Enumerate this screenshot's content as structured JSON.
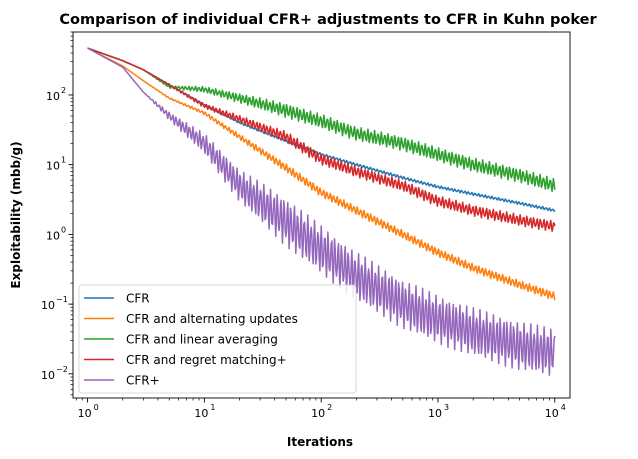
{
  "chart_data": {
    "type": "line",
    "title": "Comparison of individual CFR+ adjustments to CFR in Kuhn poker",
    "xlabel": "Iterations",
    "ylabel": "Exploitability (mbb/g)",
    "xscale": "log",
    "yscale": "log",
    "xlim": [
      0.75,
      13500
    ],
    "ylim": [
      0.0045,
      800
    ],
    "grid": false,
    "legend_position": "lower-left",
    "x_ticks": [
      {
        "base": "10",
        "exp": "0",
        "value": 1
      },
      {
        "base": "10",
        "exp": "1",
        "value": 10
      },
      {
        "base": "10",
        "exp": "2",
        "value": 100
      },
      {
        "base": "10",
        "exp": "3",
        "value": 1000
      },
      {
        "base": "10",
        "exp": "4",
        "value": 10000
      }
    ],
    "y_ticks": [
      {
        "base": "10",
        "exp": "−2",
        "value": 0.01
      },
      {
        "base": "10",
        "exp": "−1",
        "value": 0.1
      },
      {
        "base": "10",
        "exp": "0",
        "value": 1
      },
      {
        "base": "10",
        "exp": "1",
        "value": 10
      },
      {
        "base": "10",
        "exp": "2",
        "value": 100
      }
    ],
    "series": [
      {
        "name": "CFR",
        "color": "#1f77b4",
        "x": [
          1,
          2,
          3,
          5,
          10,
          20,
          50,
          100,
          200,
          500,
          1000,
          2000,
          5000,
          10000
        ],
        "y": [
          470,
          310,
          230,
          140,
          72,
          40,
          22,
          14,
          10,
          6.5,
          4.8,
          3.8,
          2.8,
          2.2
        ],
        "osc": 0.02
      },
      {
        "name": "CFR and alternating updates",
        "color": "#ff7f0e",
        "x": [
          1,
          2,
          3,
          5,
          10,
          20,
          50,
          100,
          200,
          500,
          1000,
          2000,
          5000,
          10000
        ],
        "y": [
          470,
          260,
          160,
          90,
          55,
          25,
          9,
          4,
          2.2,
          1,
          0.55,
          0.33,
          0.19,
          0.13
        ],
        "osc": 0.06
      },
      {
        "name": "CFR and linear averaging",
        "color": "#2ca02c",
        "x": [
          1,
          2,
          3,
          5,
          10,
          20,
          50,
          100,
          200,
          500,
          1000,
          2000,
          5000,
          10000
        ],
        "y": [
          470,
          310,
          230,
          130,
          120,
          90,
          60,
          42,
          28,
          20,
          14,
          10,
          7,
          5
        ],
        "osc": 0.1
      },
      {
        "name": "CFR and regret matching+",
        "color": "#d62728",
        "x": [
          1,
          2,
          3,
          5,
          10,
          20,
          50,
          100,
          200,
          500,
          1000,
          2000,
          5000,
          10000
        ],
        "y": [
          470,
          310,
          230,
          140,
          70,
          45,
          25,
          12,
          8,
          5,
          3,
          2.2,
          1.6,
          1.3
        ],
        "osc": 0.08
      },
      {
        "name": "CFR+",
        "color": "#9467bd",
        "x": [
          1,
          2,
          3,
          5,
          10,
          20,
          50,
          100,
          200,
          500,
          1000,
          2000,
          5000,
          10000
        ],
        "y": [
          470,
          250,
          110,
          50,
          20,
          5,
          1.5,
          0.6,
          0.25,
          0.1,
          0.06,
          0.04,
          0.025,
          0.02
        ],
        "osc": 0.35
      }
    ]
  }
}
